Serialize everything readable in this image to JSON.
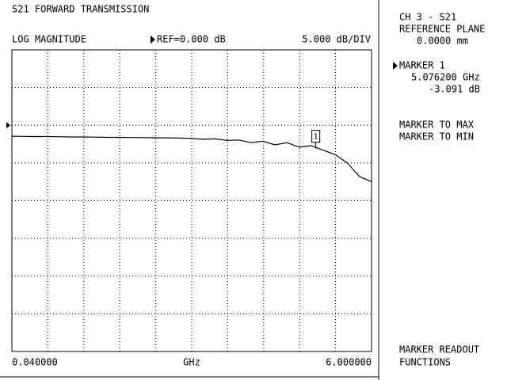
{
  "chart_data": {
    "type": "line",
    "title": "S21 FORWARD TRANSMISSION",
    "format": "LOG MAGNITUDE",
    "reference_label": "REF=0.000 dB",
    "scale_label": "5.000 dB/DIV",
    "x_label": "GHz",
    "reference": 0,
    "x": [
      0.04,
      0.2,
      0.4,
      0.6,
      0.8,
      1.0,
      1.2,
      1.4,
      1.6,
      1.8,
      2.0,
      2.2,
      2.4,
      2.6,
      2.8,
      3.0,
      3.2,
      3.4,
      3.6,
      3.8,
      4.0,
      4.2,
      4.4,
      4.6,
      4.8,
      5.0,
      5.2,
      5.4,
      5.6,
      5.8,
      6.0
    ],
    "series": [
      {
        "name": "S21",
        "color": "#000000",
        "values": [
          -1.45,
          -1.48,
          -1.5,
          -1.5,
          -1.52,
          -1.55,
          -1.55,
          -1.57,
          -1.6,
          -1.6,
          -1.62,
          -1.63,
          -1.65,
          -1.66,
          -1.7,
          -1.75,
          -1.85,
          -1.8,
          -2.0,
          -1.95,
          -2.3,
          -2.1,
          -2.6,
          -2.3,
          -2.9,
          -2.7,
          -3.3,
          -3.9,
          -5.0,
          -6.8,
          -7.5
        ]
      }
    ],
    "marker": {
      "x": 5.0762,
      "value": -3.091,
      "label": "1"
    },
    "xlim": [
      0.04,
      6.0
    ],
    "ylim": [
      -30,
      10
    ],
    "xticks": [
      {
        "value": 0.04,
        "label": "0.040000"
      },
      0.636,
      1.232,
      1.828,
      2.424,
      3.02,
      3.616,
      4.212,
      4.808,
      5.404,
      {
        "value": 6.0,
        "label": "6.000000"
      }
    ],
    "yticks": [
      -30,
      -25,
      -20,
      -15,
      -10,
      -5,
      0,
      5,
      10
    ],
    "grid": true
  },
  "panel": {
    "channel": "CH 3 - S21",
    "reference_plane": "REFERENCE PLANE",
    "reference_plane_value": "0.0000 mm",
    "marker_name": "MARKER 1",
    "marker_freq": "5.076200 GHz",
    "marker_value": "-3.091 dB",
    "menu": [
      "MARKER TO MAX",
      "MARKER TO MIN"
    ],
    "footer": [
      "MARKER READOUT",
      "FUNCTIONS"
    ]
  }
}
